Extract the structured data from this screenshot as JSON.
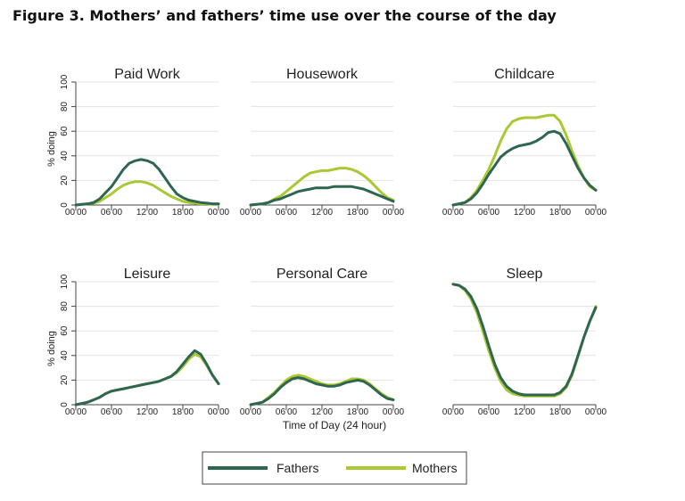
{
  "figure": {
    "title": "Figure 3. Mothers’ and fathers’ time use over the course of the day"
  },
  "colors": {
    "fathers": "#2f6650",
    "mothers": "#a9c934",
    "grid": "#e3e3e3",
    "axis": "#444444"
  },
  "chart_data": {
    "type": "line",
    "ylabel": "% doing",
    "xlabel": "Time of Day (24 hour)",
    "x_ticks": [
      "00'00",
      "06'00",
      "12'00",
      "18'00",
      "00'00"
    ],
    "y_ticks": [
      0,
      20,
      40,
      60,
      80,
      100
    ],
    "ylim": [
      0,
      100
    ],
    "xlim": [
      0,
      24
    ],
    "grid": true,
    "legend": {
      "placement": "bottom",
      "entries": [
        "Fathers",
        "Mothers"
      ]
    },
    "x": [
      0,
      1,
      2,
      3,
      4,
      5,
      6,
      7,
      8,
      9,
      10,
      11,
      12,
      13,
      14,
      15,
      16,
      17,
      18,
      19,
      20,
      21,
      22,
      23,
      24
    ],
    "panels": [
      {
        "title": "Paid Work",
        "series": [
          {
            "name": "Fathers",
            "values": [
              0,
              0.5,
              1,
              2,
              5,
              10,
              15,
              22,
              29,
              34,
              36,
              37,
              36,
              34,
              29,
              22,
              15,
              9,
              6,
              4,
              3,
              2,
              1.5,
              1,
              1
            ]
          },
          {
            "name": "Mothers",
            "values": [
              0,
              0.5,
              1,
              1.5,
              3,
              6,
              9,
              13,
              16,
              18,
              19,
              19,
              18,
              16,
              13,
              10,
              7,
              5,
              3,
              2,
              1.5,
              1,
              1,
              0.5,
              0.5
            ]
          }
        ]
      },
      {
        "title": "Housework",
        "series": [
          {
            "name": "Fathers",
            "values": [
              0,
              0.5,
              1,
              2,
              4,
              5,
              7,
              9,
              11,
              12,
              13,
              14,
              14,
              14,
              15,
              15,
              15,
              15,
              14,
              13,
              11,
              9,
              7,
              5,
              3
            ]
          },
          {
            "name": "Mothers",
            "values": [
              0,
              0.5,
              1,
              2,
              5,
              7,
              11,
              15,
              19,
              23,
              26,
              27,
              28,
              28,
              29,
              30,
              30,
              29,
              27,
              24,
              20,
              15,
              10,
              6,
              4
            ]
          }
        ]
      },
      {
        "title": "Childcare",
        "series": [
          {
            "name": "Fathers",
            "values": [
              0,
              1,
              2,
              5,
              10,
              17,
              25,
              32,
              39,
              43,
              46,
              48,
              49,
              50,
              52,
              55,
              59,
              60,
              58,
              50,
              40,
              30,
              22,
              16,
              12
            ]
          },
          {
            "name": "Mothers",
            "values": [
              0,
              1,
              2,
              6,
              12,
              20,
              29,
              40,
              52,
              62,
              68,
              70,
              71,
              71,
              71,
              72,
              73,
              73,
              68,
              57,
              44,
              32,
              22,
              15,
              12
            ]
          }
        ]
      },
      {
        "title": "Leisure",
        "series": [
          {
            "name": "Fathers",
            "values": [
              0,
              1,
              2,
              4,
              6,
              9,
              11,
              12,
              13,
              14,
              15,
              16,
              17,
              18,
              19,
              21,
              23,
              27,
              33,
              39,
              44,
              41,
              33,
              24,
              17
            ]
          },
          {
            "name": "Mothers",
            "values": [
              0,
              1,
              2,
              4,
              6,
              9,
              11,
              12,
              13,
              14,
              15,
              16,
              17,
              18,
              19,
              21,
              23,
              26,
              31,
              37,
              41,
              39,
              32,
              24,
              17
            ]
          }
        ]
      },
      {
        "title": "Personal Care",
        "series": [
          {
            "name": "Fathers",
            "values": [
              0,
              1,
              2,
              5,
              9,
              14,
              18,
              21,
              22,
              21,
              19,
              17,
              16,
              15,
              15,
              16,
              18,
              19,
              20,
              19,
              16,
              12,
              8,
              5,
              4
            ]
          },
          {
            "name": "Mothers",
            "values": [
              0,
              1,
              2,
              6,
              10,
              15,
              20,
              23,
              24,
              23,
              21,
              19,
              17,
              16,
              16,
              17,
              19,
              21,
              21,
              20,
              17,
              13,
              9,
              6,
              4
            ]
          }
        ]
      },
      {
        "title": "Sleep",
        "series": [
          {
            "name": "Fathers",
            "values": [
              98,
              97,
              94,
              88,
              78,
              64,
              48,
              33,
              22,
              15,
              11,
              9,
              8,
              8,
              8,
              8,
              8,
              8,
              10,
              15,
              25,
              40,
              55,
              68,
              79
            ]
          },
          {
            "name": "Mothers",
            "values": [
              98,
              97,
              93,
              86,
              75,
              60,
              44,
              30,
              19,
              12,
              9,
              8,
              7,
              7,
              7,
              7,
              7,
              7,
              9,
              14,
              24,
              39,
              55,
              68,
              80
            ]
          }
        ]
      }
    ]
  }
}
